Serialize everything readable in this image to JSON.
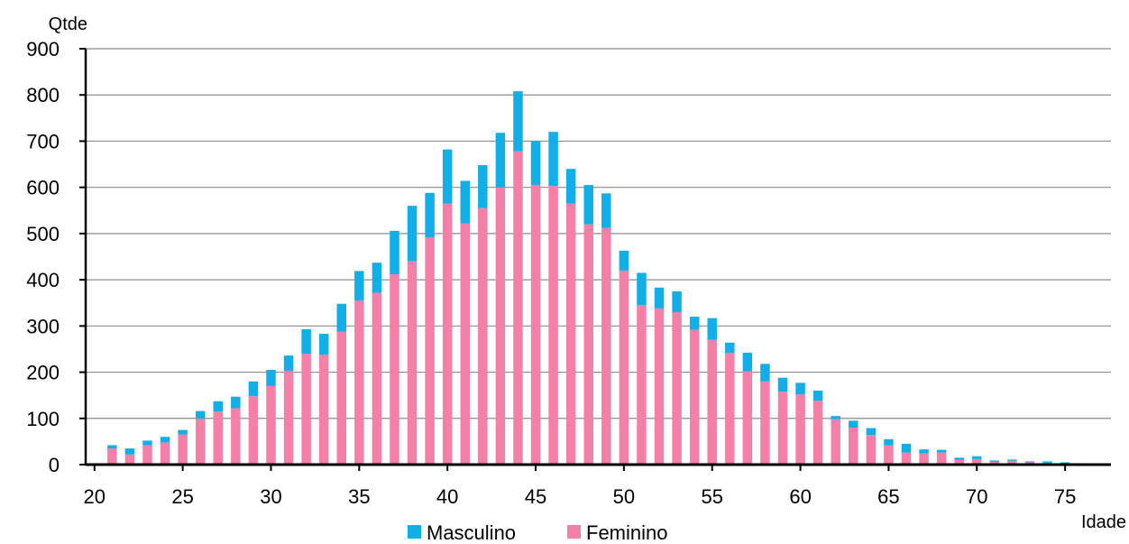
{
  "chart_data": {
    "type": "bar",
    "stacked": true,
    "ylabel": "Qtde",
    "xlabel": "Idade",
    "ylim": [
      0,
      900
    ],
    "yticks": [
      0,
      100,
      200,
      300,
      400,
      500,
      600,
      700,
      800,
      900
    ],
    "xticks": [
      20,
      25,
      30,
      35,
      40,
      45,
      50,
      55,
      60,
      65,
      70,
      75
    ],
    "grid": "horizontal",
    "legend_position": "bottom",
    "x": [
      20,
      21,
      22,
      23,
      24,
      25,
      26,
      27,
      28,
      29,
      30,
      31,
      32,
      33,
      34,
      35,
      36,
      37,
      38,
      39,
      40,
      41,
      42,
      43,
      44,
      45,
      46,
      47,
      48,
      49,
      50,
      51,
      52,
      53,
      54,
      55,
      56,
      57,
      58,
      59,
      60,
      61,
      62,
      63,
      64,
      65,
      66,
      67,
      68,
      69,
      70,
      71,
      72,
      73,
      74,
      75
    ],
    "series": [
      {
        "name": "Feminino",
        "color": "#F47FA8",
        "values": [
          2,
          35,
          22,
          42,
          48,
          65,
          100,
          115,
          122,
          148,
          170,
          203,
          240,
          238,
          288,
          355,
          372,
          412,
          440,
          492,
          565,
          522,
          555,
          600,
          678,
          605,
          603,
          565,
          520,
          512,
          420,
          345,
          338,
          330,
          292,
          270,
          242,
          202,
          180,
          158,
          152,
          138,
          98,
          80,
          64,
          42,
          26,
          24,
          26,
          10,
          12,
          6,
          8,
          5,
          4,
          3
        ]
      },
      {
        "name": "Masculino",
        "color": "#12AEE8",
        "values": [
          1,
          7,
          13,
          10,
          12,
          10,
          16,
          22,
          25,
          32,
          35,
          33,
          53,
          45,
          60,
          64,
          65,
          94,
          120,
          96,
          117,
          92,
          93,
          118,
          130,
          95,
          117,
          75,
          85,
          75,
          43,
          70,
          45,
          45,
          28,
          47,
          22,
          40,
          38,
          30,
          25,
          22,
          7,
          15,
          15,
          13,
          19,
          9,
          6,
          5,
          6,
          3,
          3,
          2,
          3,
          2
        ]
      }
    ]
  }
}
